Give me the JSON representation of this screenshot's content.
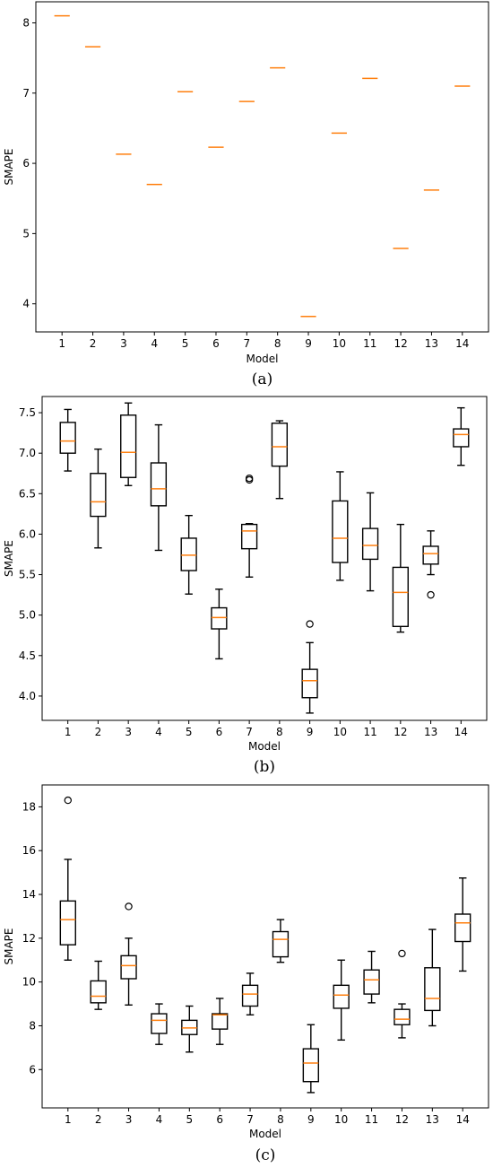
{
  "colors": {
    "median": "#ff7f0e",
    "box": "#000000",
    "background": "#ffffff"
  },
  "chart_data": [
    {
      "type": "box",
      "caption": "(a)",
      "xlabel": "Model",
      "ylabel": "SMAPE",
      "ylim": [
        3.6,
        8.3
      ],
      "yticks": [
        4,
        5,
        6,
        7,
        8
      ],
      "categories": [
        "1",
        "2",
        "3",
        "4",
        "5",
        "6",
        "7",
        "8",
        "9",
        "10",
        "11",
        "12",
        "13",
        "14"
      ],
      "boxes": [
        {
          "q1": 8.1,
          "median": 8.1,
          "q3": 8.1,
          "low": 8.1,
          "high": 8.1,
          "fliers": []
        },
        {
          "q1": 7.66,
          "median": 7.66,
          "q3": 7.66,
          "low": 7.66,
          "high": 7.66,
          "fliers": []
        },
        {
          "q1": 6.13,
          "median": 6.13,
          "q3": 6.13,
          "low": 6.13,
          "high": 6.13,
          "fliers": []
        },
        {
          "q1": 5.7,
          "median": 5.7,
          "q3": 5.7,
          "low": 5.7,
          "high": 5.7,
          "fliers": []
        },
        {
          "q1": 7.02,
          "median": 7.02,
          "q3": 7.02,
          "low": 7.02,
          "high": 7.02,
          "fliers": []
        },
        {
          "q1": 6.23,
          "median": 6.23,
          "q3": 6.23,
          "low": 6.23,
          "high": 6.23,
          "fliers": []
        },
        {
          "q1": 6.88,
          "median": 6.88,
          "q3": 6.88,
          "low": 6.88,
          "high": 6.88,
          "fliers": []
        },
        {
          "q1": 7.36,
          "median": 7.36,
          "q3": 7.36,
          "low": 7.36,
          "high": 7.36,
          "fliers": []
        },
        {
          "q1": 3.82,
          "median": 3.82,
          "q3": 3.82,
          "low": 3.82,
          "high": 3.82,
          "fliers": []
        },
        {
          "q1": 6.43,
          "median": 6.43,
          "q3": 6.43,
          "low": 6.43,
          "high": 6.43,
          "fliers": []
        },
        {
          "q1": 7.21,
          "median": 7.21,
          "q3": 7.21,
          "low": 7.21,
          "high": 7.21,
          "fliers": []
        },
        {
          "q1": 4.79,
          "median": 4.79,
          "q3": 4.79,
          "low": 4.79,
          "high": 4.79,
          "fliers": []
        },
        {
          "q1": 5.62,
          "median": 5.62,
          "q3": 5.62,
          "low": 5.62,
          "high": 5.62,
          "fliers": []
        },
        {
          "q1": 7.1,
          "median": 7.1,
          "q3": 7.1,
          "low": 7.1,
          "high": 7.1,
          "fliers": []
        }
      ]
    },
    {
      "type": "box",
      "caption": "(b)",
      "xlabel": "Model",
      "ylabel": "SMAPE",
      "ylim": [
        3.7,
        7.7
      ],
      "yticks": [
        "4.0",
        "4.5",
        "5.0",
        "5.5",
        "6.0",
        "6.5",
        "7.0",
        "7.5"
      ],
      "categories": [
        "1",
        "2",
        "3",
        "4",
        "5",
        "6",
        "7",
        "8",
        "9",
        "10",
        "11",
        "12",
        "13",
        "14"
      ],
      "boxes": [
        {
          "q1": 7.0,
          "median": 7.15,
          "q3": 7.38,
          "low": 6.78,
          "high": 7.54,
          "fliers": []
        },
        {
          "q1": 6.22,
          "median": 6.4,
          "q3": 6.75,
          "low": 5.83,
          "high": 7.05,
          "fliers": []
        },
        {
          "q1": 6.7,
          "median": 7.01,
          "q3": 7.47,
          "low": 6.6,
          "high": 7.62,
          "fliers": []
        },
        {
          "q1": 6.35,
          "median": 6.56,
          "q3": 6.88,
          "low": 5.8,
          "high": 7.35,
          "fliers": []
        },
        {
          "q1": 5.55,
          "median": 5.74,
          "q3": 5.95,
          "low": 5.26,
          "high": 6.23,
          "fliers": []
        },
        {
          "q1": 4.83,
          "median": 4.97,
          "q3": 5.09,
          "low": 4.46,
          "high": 5.32,
          "fliers": []
        },
        {
          "q1": 5.82,
          "median": 6.04,
          "q3": 6.12,
          "low": 5.47,
          "high": 6.13,
          "fliers": [
            6.67,
            6.69
          ]
        },
        {
          "q1": 6.84,
          "median": 7.08,
          "q3": 7.37,
          "low": 6.44,
          "high": 7.4,
          "fliers": []
        },
        {
          "q1": 3.98,
          "median": 4.19,
          "q3": 4.33,
          "low": 3.79,
          "high": 4.66,
          "fliers": [
            4.89
          ]
        },
        {
          "q1": 5.65,
          "median": 5.95,
          "q3": 6.41,
          "low": 5.43,
          "high": 6.77,
          "fliers": []
        },
        {
          "q1": 5.69,
          "median": 5.86,
          "q3": 6.07,
          "low": 5.3,
          "high": 6.51,
          "fliers": []
        },
        {
          "q1": 4.86,
          "median": 5.28,
          "q3": 5.59,
          "low": 4.79,
          "high": 6.12,
          "fliers": []
        },
        {
          "q1": 5.63,
          "median": 5.76,
          "q3": 5.85,
          "low": 5.5,
          "high": 6.04,
          "fliers": [
            5.25
          ]
        },
        {
          "q1": 7.08,
          "median": 7.23,
          "q3": 7.3,
          "low": 6.85,
          "high": 7.56,
          "fliers": []
        }
      ]
    },
    {
      "type": "box",
      "caption": "(c)",
      "xlabel": "Model",
      "ylabel": "SMAPE",
      "ylim": [
        4.25,
        19.0
      ],
      "yticks": [
        6,
        8,
        10,
        12,
        14,
        16,
        18
      ],
      "categories": [
        "1",
        "2",
        "3",
        "4",
        "5",
        "6",
        "7",
        "8",
        "9",
        "10",
        "11",
        "12",
        "13",
        "14"
      ],
      "boxes": [
        {
          "q1": 11.7,
          "median": 12.85,
          "q3": 13.7,
          "low": 11.0,
          "high": 15.6,
          "fliers": [
            18.3
          ]
        },
        {
          "q1": 9.05,
          "median": 9.35,
          "q3": 10.05,
          "low": 8.75,
          "high": 10.95,
          "fliers": []
        },
        {
          "q1": 10.15,
          "median": 10.75,
          "q3": 11.2,
          "low": 8.95,
          "high": 12.0,
          "fliers": [
            13.45
          ]
        },
        {
          "q1": 7.65,
          "median": 8.25,
          "q3": 8.55,
          "low": 7.15,
          "high": 9.0,
          "fliers": []
        },
        {
          "q1": 7.6,
          "median": 7.9,
          "q3": 8.25,
          "low": 6.8,
          "high": 8.9,
          "fliers": []
        },
        {
          "q1": 7.85,
          "median": 8.5,
          "q3": 8.55,
          "low": 7.15,
          "high": 9.25,
          "fliers": []
        },
        {
          "q1": 8.9,
          "median": 9.45,
          "q3": 9.85,
          "low": 8.5,
          "high": 10.4,
          "fliers": []
        },
        {
          "q1": 11.15,
          "median": 11.95,
          "q3": 12.3,
          "low": 10.9,
          "high": 12.85,
          "fliers": []
        },
        {
          "q1": 5.45,
          "median": 6.3,
          "q3": 6.95,
          "low": 4.95,
          "high": 8.05,
          "fliers": []
        },
        {
          "q1": 8.8,
          "median": 9.4,
          "q3": 9.85,
          "low": 7.35,
          "high": 11.0,
          "fliers": []
        },
        {
          "q1": 9.45,
          "median": 10.1,
          "q3": 10.55,
          "low": 9.05,
          "high": 11.4,
          "fliers": []
        },
        {
          "q1": 8.05,
          "median": 8.3,
          "q3": 8.75,
          "low": 7.45,
          "high": 9.0,
          "fliers": [
            11.3
          ]
        },
        {
          "q1": 8.7,
          "median": 9.25,
          "q3": 10.65,
          "low": 8.0,
          "high": 12.4,
          "fliers": []
        },
        {
          "q1": 11.85,
          "median": 12.7,
          "q3": 13.1,
          "low": 10.5,
          "high": 14.75,
          "fliers": []
        }
      ]
    }
  ]
}
